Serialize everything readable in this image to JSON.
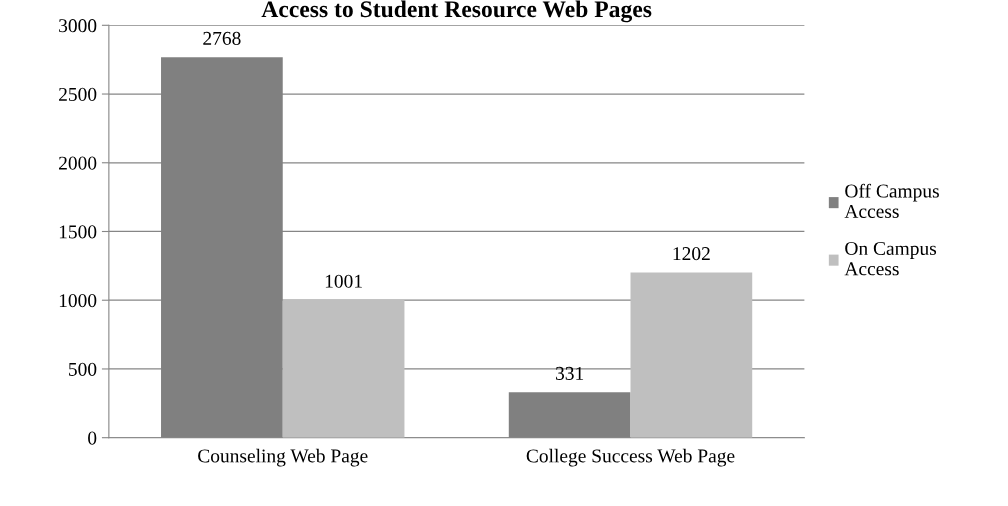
{
  "chart_data": {
    "type": "bar",
    "title": "Access to Student Resource Web Pages",
    "categories": [
      "Counseling Web Page",
      "College Success Web Page"
    ],
    "series": [
      {
        "name": "Off Campus Access",
        "color": "#808080",
        "values": [
          2768,
          331
        ]
      },
      {
        "name": "On Campus Access",
        "color": "#bfbfbf",
        "values": [
          1001,
          1202
        ]
      }
    ],
    "ylim": [
      0,
      3000
    ],
    "yticks": [
      0,
      500,
      1000,
      1500,
      2000,
      2500,
      3000
    ],
    "grid": "y",
    "legend": "right",
    "data_labels": true
  }
}
